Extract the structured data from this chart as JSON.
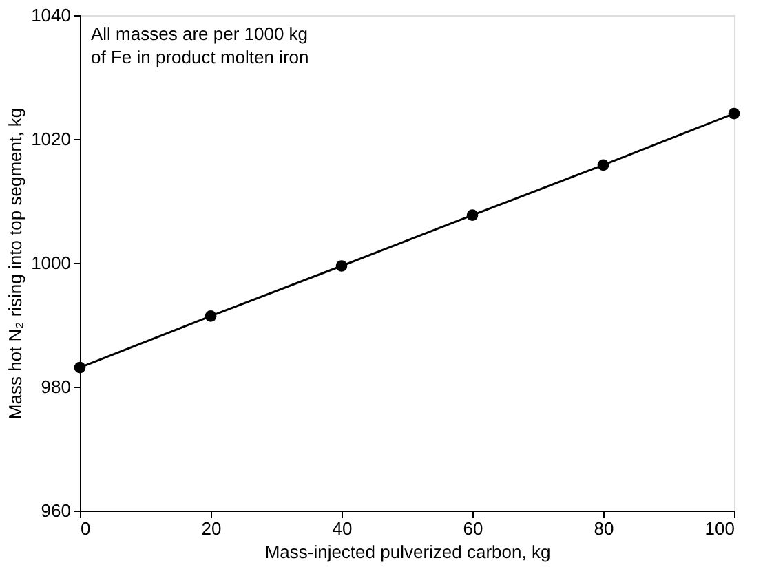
{
  "chart_data": {
    "type": "line",
    "xlabel": "Mass-injected pulverized carbon, kg",
    "ylabel": "Mass hot N₂ rising into top segment, kg",
    "annotations": [
      "All masses are per 1000 kg\nof Fe in product molten iron"
    ],
    "x": [
      0,
      20,
      40,
      60,
      80,
      100
    ],
    "series": [
      {
        "color": "#000000",
        "values": [
          983.1,
          991.4,
          999.5,
          1007.7,
          1015.8,
          1024.1
        ]
      }
    ],
    "xlim": [
      0,
      100
    ],
    "xticks": [
      0,
      20,
      40,
      60,
      80,
      100
    ],
    "ylim": [
      960,
      1040
    ],
    "yticks": [
      960,
      980,
      1000,
      1020,
      1040
    ],
    "grid": false,
    "marker": "circle",
    "line_style": "solid"
  }
}
